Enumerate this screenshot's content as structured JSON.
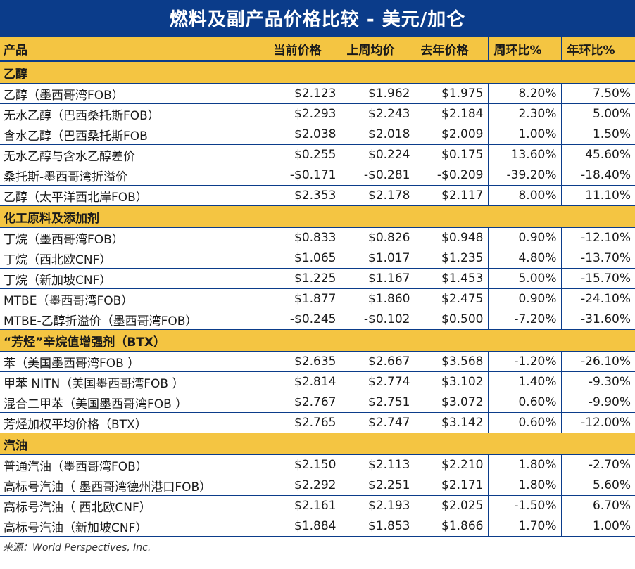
{
  "title": "燃料及副产品价格比较 - 美元/加仑",
  "headers": [
    "产品",
    "当前价格",
    "上周均价",
    "去年价格",
    "周环比%",
    "年环比%"
  ],
  "sections": [
    {
      "name": "乙醇",
      "rows": [
        [
          "乙醇（墨西哥湾FOB）",
          "$2.123",
          "$1.962",
          "$1.975",
          "8.20%",
          "7.50%"
        ],
        [
          "无水乙醇（巴西桑托斯FOB）",
          "$2.293",
          "$2.243",
          "$2.184",
          "2.30%",
          "5.00%"
        ],
        [
          "含水乙醇（巴西桑托斯FOB",
          "$2.038",
          "$2.018",
          "$2.009",
          "1.00%",
          "1.50%"
        ],
        [
          "无水乙醇与含水乙醇差价",
          "$0.255",
          "$0.224",
          "$0.175",
          "13.60%",
          "45.60%"
        ],
        [
          "桑托斯-墨西哥湾折溢价",
          "-$0.171",
          "-$0.281",
          "-$0.209",
          "-39.20%",
          "-18.40%"
        ],
        [
          "乙醇（太平洋西北岸FOB）",
          "$2.353",
          "$2.178",
          "$2.117",
          "8.00%",
          "11.10%"
        ]
      ]
    },
    {
      "name": "化工原料及添加剂",
      "rows": [
        [
          "丁烷（墨西哥湾FOB）",
          "$0.833",
          "$0.826",
          "$0.948",
          "0.90%",
          "-12.10%"
        ],
        [
          "丁烷（西北欧CNF）",
          "$1.065",
          "$1.017",
          "$1.235",
          "4.80%",
          "-13.70%"
        ],
        [
          "丁烷（新加坡CNF）",
          "$1.225",
          "$1.167",
          "$1.453",
          "5.00%",
          "-15.70%"
        ],
        [
          "MTBE（墨西哥湾FOB）",
          "$1.877",
          "$1.860",
          "$2.475",
          "0.90%",
          "-24.10%"
        ],
        [
          "MTBE-乙醇折溢价（墨西哥湾FOB）",
          "-$0.245",
          "-$0.102",
          "$0.500",
          "-7.20%",
          "-31.60%"
        ]
      ]
    },
    {
      "name": "“芳烃”辛烷值增强剂（BTX）",
      "rows": [
        [
          "苯（美国墨西哥湾FOB ）",
          "$2.635",
          "$2.667",
          "$3.568",
          "-1.20%",
          "-26.10%"
        ],
        [
          "甲苯 NITN（美国墨西哥湾FOB ）",
          "$2.814",
          "$2.774",
          "$3.102",
          "1.40%",
          "-9.30%"
        ],
        [
          "混合二甲苯（美国墨西哥湾FOB ）",
          "$2.767",
          "$2.751",
          "$3.072",
          "0.60%",
          "-9.90%"
        ],
        [
          "芳烃加权平均价格（BTX）",
          "$2.765",
          "$2.747",
          "$3.142",
          "0.60%",
          "-12.00%"
        ]
      ]
    },
    {
      "name": "汽油",
      "rows": [
        [
          "普通汽油（墨西哥湾FOB）",
          "$2.150",
          "$2.113",
          "$2.210",
          "1.80%",
          "-2.70%"
        ],
        [
          "高标号汽油（ 墨西哥湾德州港口FOB）",
          "$2.292",
          "$2.251",
          "$2.171",
          "1.80%",
          "5.60%"
        ],
        [
          "高标号汽油（ 西北欧CNF）",
          "$2.161",
          "$2.193",
          "$2.025",
          "-1.50%",
          "6.70%"
        ],
        [
          "高标号汽油（新加坡CNF）",
          "$1.884",
          "$1.853",
          "$1.866",
          "1.70%",
          "1.00%"
        ]
      ]
    }
  ],
  "source": "来源：World Perspectives, Inc.",
  "colors": {
    "title_bg": "#0b3c8a",
    "header_bg": "#f4c542",
    "border": "#0b3c8a"
  }
}
